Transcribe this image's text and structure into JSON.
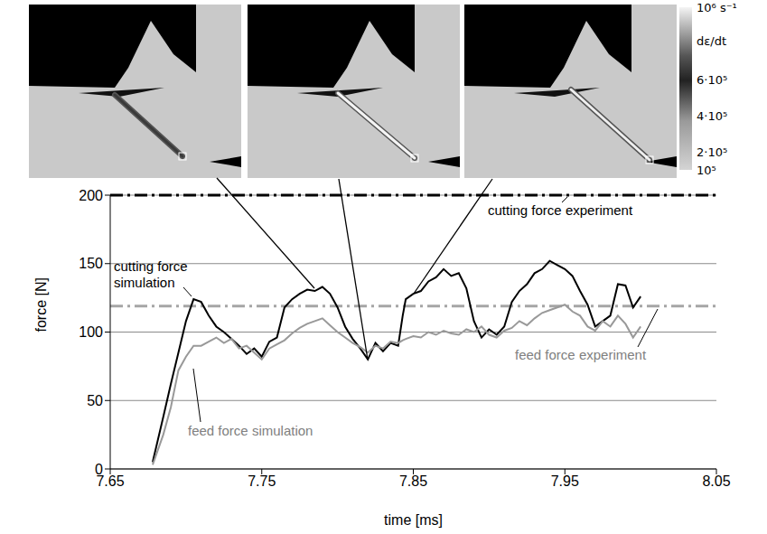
{
  "chart_data": {
    "type": "line",
    "xlabel": "time [ms]",
    "ylabel": "force [N]",
    "xlim": [
      7.65,
      8.05
    ],
    "xticks": [
      7.65,
      7.75,
      7.85,
      7.95,
      8.05
    ],
    "ylim": [
      0,
      200
    ],
    "yticks": [
      0,
      50,
      100,
      150,
      200
    ],
    "grid": true,
    "x": [
      7.678,
      7.685,
      7.69,
      7.695,
      7.7,
      7.705,
      7.71,
      7.715,
      7.72,
      7.725,
      7.73,
      7.735,
      7.74,
      7.745,
      7.75,
      7.755,
      7.76,
      7.765,
      7.77,
      7.775,
      7.78,
      7.785,
      7.79,
      7.795,
      7.8,
      7.805,
      7.81,
      7.815,
      7.82,
      7.825,
      7.83,
      7.835,
      7.84,
      7.843,
      7.845,
      7.85,
      7.855,
      7.86,
      7.865,
      7.87,
      7.875,
      7.88,
      7.885,
      7.89,
      7.895,
      7.9,
      7.905,
      7.91,
      7.915,
      7.92,
      7.925,
      7.93,
      7.935,
      7.94,
      7.945,
      7.95,
      7.955,
      7.96,
      7.965,
      7.97,
      7.975,
      7.98,
      7.985,
      7.99,
      7.995,
      8.0
    ],
    "series": [
      {
        "name": "cutting force simulation",
        "color": "#000000",
        "line_style": "solid",
        "values": [
          5,
          38,
          62,
          85,
          108,
          124,
          122,
          112,
          104,
          100,
          95,
          90,
          84,
          88,
          82,
          93,
          96,
          118,
          124,
          128,
          131,
          130,
          133,
          128,
          118,
          104,
          95,
          88,
          80,
          92,
          86,
          92,
          90,
          112,
          124,
          128,
          130,
          137,
          140,
          146,
          141,
          143,
          132,
          108,
          96,
          102,
          98,
          104,
          122,
          130,
          135,
          143,
          146,
          152,
          149,
          146,
          141,
          130,
          120,
          104,
          108,
          112,
          135,
          134,
          118,
          126
        ]
      },
      {
        "name": "feed force simulation",
        "color": "#999999",
        "line_style": "solid",
        "values": [
          3,
          25,
          45,
          72,
          82,
          90,
          90,
          93,
          96,
          92,
          95,
          88,
          90,
          85,
          80,
          88,
          91,
          94,
          99,
          103,
          106,
          108,
          110,
          105,
          100,
          96,
          92,
          89,
          85,
          90,
          88,
          93,
          92,
          94,
          95,
          97,
          96,
          100,
          98,
          101,
          99,
          98,
          102,
          100,
          104,
          98,
          96,
          101,
          103,
          108,
          105,
          110,
          114,
          116,
          118,
          120,
          115,
          112,
          104,
          101,
          108,
          104,
          112,
          106,
          96,
          104
        ]
      },
      {
        "name": "cutting force experiment",
        "type": "hline",
        "value": 200,
        "color": "#000000",
        "line_style": "dashdot"
      },
      {
        "name": "feed force experiment",
        "type": "hline",
        "value": 119,
        "color": "#a6a6a6",
        "line_style": "dashdot"
      }
    ],
    "colorbar": {
      "label": "dε/dt",
      "range": [
        100000,
        1000000
      ],
      "ticks": [
        {
          "value": 1000000,
          "label": "10⁶ s⁻¹"
        },
        {
          "value": 600000,
          "label": "6·10⁵"
        },
        {
          "value": 400000,
          "label": "4·10⁵"
        },
        {
          "value": 200000,
          "label": "2·10⁵"
        },
        {
          "value": 100000,
          "label": "10⁵"
        }
      ]
    }
  }
}
